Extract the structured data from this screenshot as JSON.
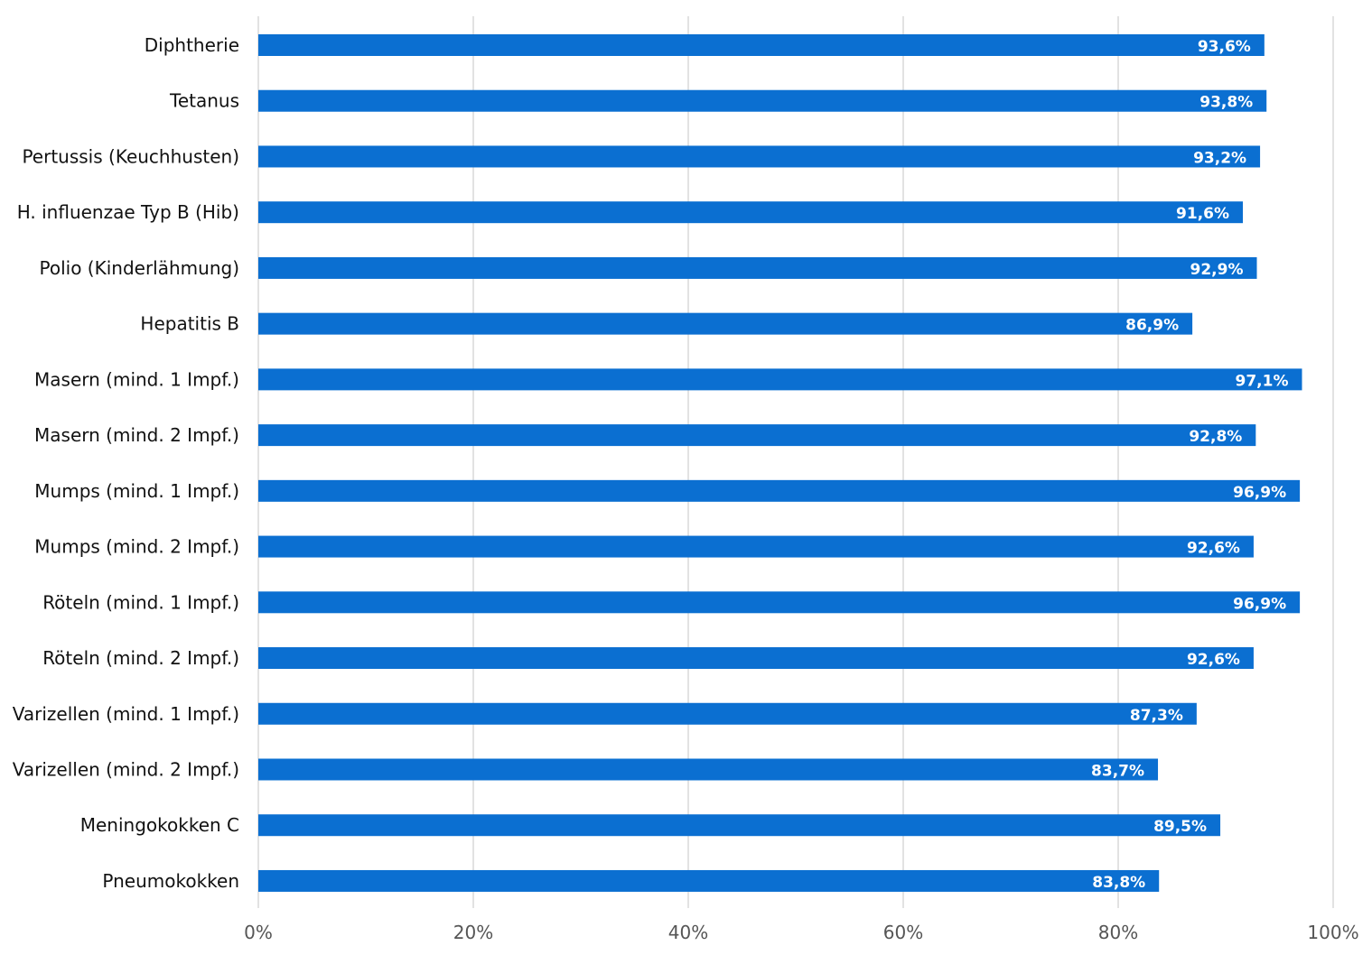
{
  "chart_data": {
    "type": "bar",
    "orientation": "horizontal",
    "title": "",
    "xlabel": "",
    "ylabel": "",
    "xlim": [
      0,
      100
    ],
    "grid": true,
    "bar_color": "#0b6fd1",
    "tick_labels": [
      "0%",
      "20%",
      "40%",
      "60%",
      "80%",
      "100%"
    ],
    "tick_values": [
      0,
      20,
      40,
      60,
      80,
      100
    ],
    "categories": [
      "Diphtherie",
      "Tetanus",
      "Pertussis (Keuchhusten)",
      "H. influenzae Typ B (Hib)",
      "Polio (Kinderlähmung)",
      "Hepatitis B",
      "Masern (mind. 1 Impf.)",
      "Masern (mind. 2 Impf.)",
      "Mumps (mind. 1 Impf.)",
      "Mumps (mind. 2 Impf.)",
      "Röteln (mind. 1 Impf.)",
      "Röteln (mind. 2 Impf.)",
      "Varizellen (mind. 1 Impf.)",
      "Varizellen (mind. 2 Impf.)",
      "Meningokokken C",
      "Pneumokokken"
    ],
    "values": [
      93.6,
      93.8,
      93.2,
      91.6,
      92.9,
      86.9,
      97.1,
      92.8,
      96.9,
      92.6,
      96.9,
      92.6,
      87.3,
      83.7,
      89.5,
      83.8
    ],
    "data_labels": [
      "93,6%",
      "93,8%",
      "93,2%",
      "91,6%",
      "92,9%",
      "86,9%",
      "97,1%",
      "92,8%",
      "96,9%",
      "92,6%",
      "96,9%",
      "92,6%",
      "87,3%",
      "83,7%",
      "89,5%",
      "83,8%"
    ]
  }
}
